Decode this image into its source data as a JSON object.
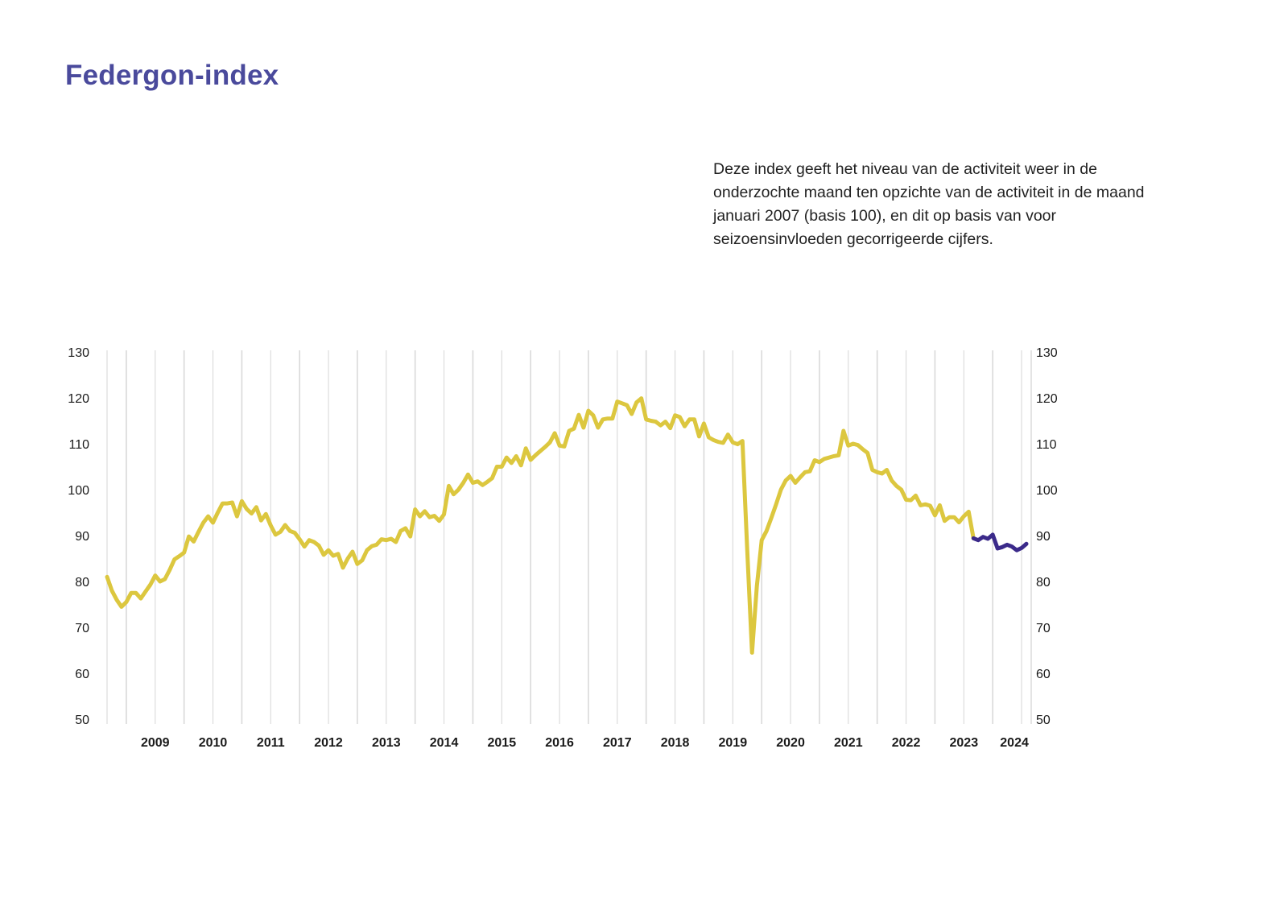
{
  "title": "Federgon-index",
  "description": "Deze index geeft het niveau van de activiteit weer in de onderzochte maand ten opzichte van de activiteit in de maand januari 2007 (basis 100), en dit op basis van voor seizoensinvloeden gecorrigeerde cijfers.",
  "colors": {
    "title": "#4a4a9c",
    "series_main": "#dcc73f",
    "series_recent": "#3b2a8a",
    "gridline": "#d9d9d9"
  },
  "chart_data": {
    "type": "line",
    "title": "",
    "xlabel": "",
    "ylabel": "",
    "ylim": [
      50,
      130
    ],
    "yticks": [
      130,
      120,
      110,
      100,
      90,
      80,
      70,
      60,
      50
    ],
    "y_axis_positions": [
      "left",
      "right"
    ],
    "grid": "vertical",
    "x_start": "2008-09",
    "x_end": "2024-10",
    "year_labels": [
      "2009",
      "2010",
      "2011",
      "2012",
      "2013",
      "2014",
      "2015",
      "2016",
      "2017",
      "2018",
      "2019",
      "2020",
      "2021",
      "2022",
      "2023",
      "2024"
    ],
    "series": [
      {
        "color": "#dcc73f",
        "points": [
          [
            "2008-09",
            81
          ],
          [
            "2008-10",
            78
          ],
          [
            "2008-11",
            76
          ],
          [
            "2008-12",
            74.5
          ],
          [
            "2009-01",
            75.5
          ],
          [
            "2009-02",
            77.5
          ],
          [
            "2009-03",
            77.5
          ],
          [
            "2009-04",
            76.3
          ],
          [
            "2009-05",
            77.8
          ],
          [
            "2009-06",
            79.3
          ],
          [
            "2009-07",
            81.3
          ],
          [
            "2009-08",
            80
          ],
          [
            "2009-09",
            80.5
          ],
          [
            "2009-10",
            82.5
          ],
          [
            "2009-11",
            84.8
          ],
          [
            "2009-12",
            85.5
          ],
          [
            "2010-01",
            86.3
          ],
          [
            "2010-02",
            89.8
          ],
          [
            "2010-03",
            88.7
          ],
          [
            "2010-04",
            90.8
          ],
          [
            "2010-05",
            92.8
          ],
          [
            "2010-06",
            94.2
          ],
          [
            "2010-07",
            92.8
          ],
          [
            "2010-08",
            95
          ],
          [
            "2010-09",
            97
          ],
          [
            "2010-10",
            97
          ],
          [
            "2010-11",
            97.2
          ],
          [
            "2010-12",
            94.2
          ],
          [
            "2011-01",
            97.5
          ],
          [
            "2011-02",
            95.8
          ],
          [
            "2011-03",
            94.8
          ],
          [
            "2011-04",
            96.2
          ],
          [
            "2011-05",
            93.3
          ],
          [
            "2011-06",
            94.7
          ],
          [
            "2011-07",
            92.2
          ],
          [
            "2011-08",
            90.2
          ],
          [
            "2011-09",
            90.8
          ],
          [
            "2011-10",
            92.3
          ],
          [
            "2011-11",
            91
          ],
          [
            "2011-12",
            90.6
          ],
          [
            "2012-01",
            89.2
          ],
          [
            "2012-02",
            87.6
          ],
          [
            "2012-03",
            89
          ],
          [
            "2012-04",
            88.6
          ],
          [
            "2012-05",
            87.8
          ],
          [
            "2012-06",
            85.8
          ],
          [
            "2012-07",
            86.8
          ],
          [
            "2012-08",
            85.6
          ],
          [
            "2012-09",
            86
          ],
          [
            "2012-10",
            83
          ],
          [
            "2012-11",
            85
          ],
          [
            "2012-12",
            86.5
          ],
          [
            "2013-01",
            83.8
          ],
          [
            "2013-02",
            84.6
          ],
          [
            "2013-03",
            86.8
          ],
          [
            "2013-04",
            87.7
          ],
          [
            "2013-05",
            88
          ],
          [
            "2013-06",
            89.2
          ],
          [
            "2013-07",
            89
          ],
          [
            "2013-08",
            89.3
          ],
          [
            "2013-09",
            88.6
          ],
          [
            "2013-10",
            91
          ],
          [
            "2013-11",
            91.6
          ],
          [
            "2013-12",
            89.8
          ],
          [
            "2014-01",
            95.7
          ],
          [
            "2014-02",
            94.2
          ],
          [
            "2014-03",
            95.3
          ],
          [
            "2014-04",
            94
          ],
          [
            "2014-05",
            94.3
          ],
          [
            "2014-06",
            93.2
          ],
          [
            "2014-07",
            94.6
          ],
          [
            "2014-08",
            100.8
          ],
          [
            "2014-09",
            99
          ],
          [
            "2014-10",
            100
          ],
          [
            "2014-11",
            101.5
          ],
          [
            "2014-12",
            103.3
          ],
          [
            "2015-01",
            101.5
          ],
          [
            "2015-02",
            101.8
          ],
          [
            "2015-03",
            101
          ],
          [
            "2015-04",
            101.7
          ],
          [
            "2015-05",
            102.5
          ],
          [
            "2015-06",
            105
          ],
          [
            "2015-07",
            105
          ],
          [
            "2015-08",
            107
          ],
          [
            "2015-09",
            105.8
          ],
          [
            "2015-10",
            107.3
          ],
          [
            "2015-11",
            105.3
          ],
          [
            "2015-12",
            109
          ],
          [
            "2016-01",
            106.5
          ],
          [
            "2016-02",
            107.5
          ],
          [
            "2016-03",
            108.4
          ],
          [
            "2016-04",
            109.3
          ],
          [
            "2016-05",
            110.3
          ],
          [
            "2016-06",
            112.3
          ],
          [
            "2016-07",
            109.6
          ],
          [
            "2016-08",
            109.4
          ],
          [
            "2016-09",
            112.8
          ],
          [
            "2016-10",
            113.3
          ],
          [
            "2016-11",
            116.3
          ],
          [
            "2016-12",
            113.5
          ],
          [
            "2017-01",
            117.2
          ],
          [
            "2017-02",
            116.2
          ],
          [
            "2017-03",
            113.5
          ],
          [
            "2017-04",
            115.3
          ],
          [
            "2017-05",
            115.5
          ],
          [
            "2017-06",
            115.5
          ],
          [
            "2017-07",
            119.2
          ],
          [
            "2017-08",
            118.8
          ],
          [
            "2017-09",
            118.4
          ],
          [
            "2017-10",
            116.5
          ],
          [
            "2017-11",
            119
          ],
          [
            "2017-12",
            119.9
          ],
          [
            "2018-01",
            115.3
          ],
          [
            "2018-02",
            115
          ],
          [
            "2018-03",
            114.8
          ],
          [
            "2018-04",
            114
          ],
          [
            "2018-05",
            114.8
          ],
          [
            "2018-06",
            113.4
          ],
          [
            "2018-07",
            116.2
          ],
          [
            "2018-08",
            115.8
          ],
          [
            "2018-09",
            113.8
          ],
          [
            "2018-10",
            115.3
          ],
          [
            "2018-11",
            115.3
          ],
          [
            "2018-12",
            111.6
          ],
          [
            "2019-01",
            114.4
          ],
          [
            "2019-02",
            111.4
          ],
          [
            "2019-03",
            110.8
          ],
          [
            "2019-04",
            110.4
          ],
          [
            "2019-05",
            110.2
          ],
          [
            "2019-06",
            112
          ],
          [
            "2019-07",
            110.3
          ],
          [
            "2019-08",
            109.9
          ],
          [
            "2019-09",
            110.6
          ],
          [
            "2019-10",
            87
          ],
          [
            "2019-11",
            64.5
          ],
          [
            "2019-12",
            79
          ],
          [
            "2020-01",
            89
          ],
          [
            "2020-02",
            91
          ],
          [
            "2020-03",
            93.8
          ],
          [
            "2020-04",
            96.8
          ],
          [
            "2020-05",
            100
          ],
          [
            "2020-06",
            102
          ],
          [
            "2020-07",
            103
          ],
          [
            "2020-08",
            101.5
          ],
          [
            "2020-09",
            102.7
          ],
          [
            "2020-10",
            103.8
          ],
          [
            "2020-11",
            104
          ],
          [
            "2020-12",
            106.4
          ],
          [
            "2021-01",
            106
          ],
          [
            "2021-02",
            106.7
          ],
          [
            "2021-03",
            107
          ],
          [
            "2021-04",
            107.3
          ],
          [
            "2021-05",
            107.5
          ],
          [
            "2021-06",
            112.8
          ],
          [
            "2021-07",
            109.6
          ],
          [
            "2021-08",
            110
          ],
          [
            "2021-09",
            109.7
          ],
          [
            "2021-10",
            108.8
          ],
          [
            "2021-11",
            108
          ],
          [
            "2021-12",
            104.3
          ],
          [
            "2022-01",
            103.8
          ],
          [
            "2022-02",
            103.5
          ],
          [
            "2022-03",
            104.3
          ],
          [
            "2022-04",
            102
          ],
          [
            "2022-05",
            100.8
          ],
          [
            "2022-06",
            100
          ],
          [
            "2022-07",
            97.8
          ],
          [
            "2022-08",
            97.7
          ],
          [
            "2022-09",
            98.7
          ],
          [
            "2022-10",
            96.6
          ],
          [
            "2022-11",
            96.8
          ],
          [
            "2022-12",
            96.5
          ],
          [
            "2023-01",
            94.4
          ],
          [
            "2023-02",
            96.6
          ],
          [
            "2023-03",
            93.2
          ],
          [
            "2023-04",
            94
          ],
          [
            "2023-05",
            94
          ],
          [
            "2023-06",
            92.9
          ],
          [
            "2023-07",
            94.2
          ],
          [
            "2023-08",
            95.2
          ],
          [
            "2023-09",
            89.4
          ]
        ]
      },
      {
        "color": "#3b2a8a",
        "points": [
          [
            "2023-09",
            89.4
          ],
          [
            "2023-10",
            89
          ],
          [
            "2023-11",
            89.7
          ],
          [
            "2023-12",
            89.3
          ],
          [
            "2024-01",
            90.2
          ],
          [
            "2024-02",
            87.2
          ],
          [
            "2024-03",
            87.5
          ],
          [
            "2024-04",
            88
          ],
          [
            "2024-05",
            87.6
          ],
          [
            "2024-06",
            86.8
          ],
          [
            "2024-07",
            87.3
          ],
          [
            "2024-08",
            88.2
          ]
        ]
      }
    ]
  }
}
